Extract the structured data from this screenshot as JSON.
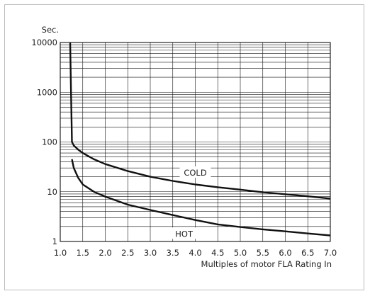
{
  "chart_data": {
    "type": "line",
    "ylabel": "Sec.",
    "xlabel": "Multiples of motor FLA Rating In",
    "y_scale": "log",
    "ylim": [
      1,
      10000
    ],
    "xlim": [
      1.0,
      7.0
    ],
    "grid": true,
    "x_ticks": [
      "1.0",
      "1.5",
      "2.0",
      "2.5",
      "3.0",
      "3.5",
      "4.0",
      "4.5",
      "5.0",
      "5.5",
      "6.0",
      "6.5",
      "7.0"
    ],
    "y_ticks": [
      "1",
      "10",
      "100",
      "1000",
      "10000"
    ],
    "series": [
      {
        "name": "COLD",
        "x": [
          1.22,
          1.24,
          1.25,
          1.26,
          1.3,
          1.4,
          1.5,
          1.75,
          2.0,
          2.5,
          3.0,
          3.5,
          4.0,
          4.5,
          5.0,
          5.5,
          6.0,
          6.5,
          7.0
        ],
        "y": [
          10000,
          1000,
          300,
          100,
          85,
          70,
          60,
          45,
          36,
          26,
          20,
          16.5,
          14,
          12.3,
          11,
          9.8,
          8.9,
          8.1,
          7.3
        ]
      },
      {
        "name": "HOT",
        "x": [
          1.26,
          1.3,
          1.4,
          1.5,
          1.75,
          2.0,
          2.5,
          3.0,
          3.5,
          4.0,
          4.5,
          5.0,
          5.5,
          6.0,
          6.5,
          7.0
        ],
        "y": [
          45,
          30,
          19,
          14,
          10,
          8,
          5.5,
          4.3,
          3.4,
          2.7,
          2.2,
          1.95,
          1.75,
          1.6,
          1.45,
          1.32
        ]
      }
    ]
  }
}
